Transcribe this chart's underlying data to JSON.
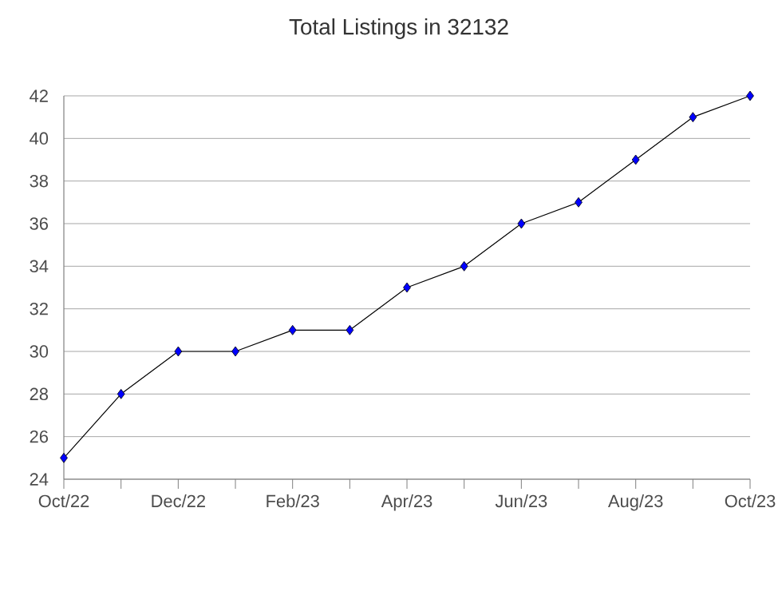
{
  "chart_data": {
    "type": "line",
    "title": "Total Listings in 32132",
    "categories": [
      "Oct/22",
      null,
      "Dec/22",
      null,
      "Feb/23",
      null,
      "Apr/23",
      null,
      "Jun/23",
      null,
      "Aug/23",
      null,
      "Oct/23"
    ],
    "series": [
      {
        "color": "#0000ff",
        "values": [
          25,
          28,
          30,
          30,
          31,
          31,
          33,
          34,
          36,
          37,
          39,
          41,
          42
        ]
      }
    ],
    "ylim": [
      24,
      42
    ],
    "yticks": [
      24,
      26,
      28,
      30,
      32,
      34,
      36,
      38,
      40,
      42
    ],
    "grid": "y",
    "marker": "diamond",
    "line_style": "solid"
  }
}
